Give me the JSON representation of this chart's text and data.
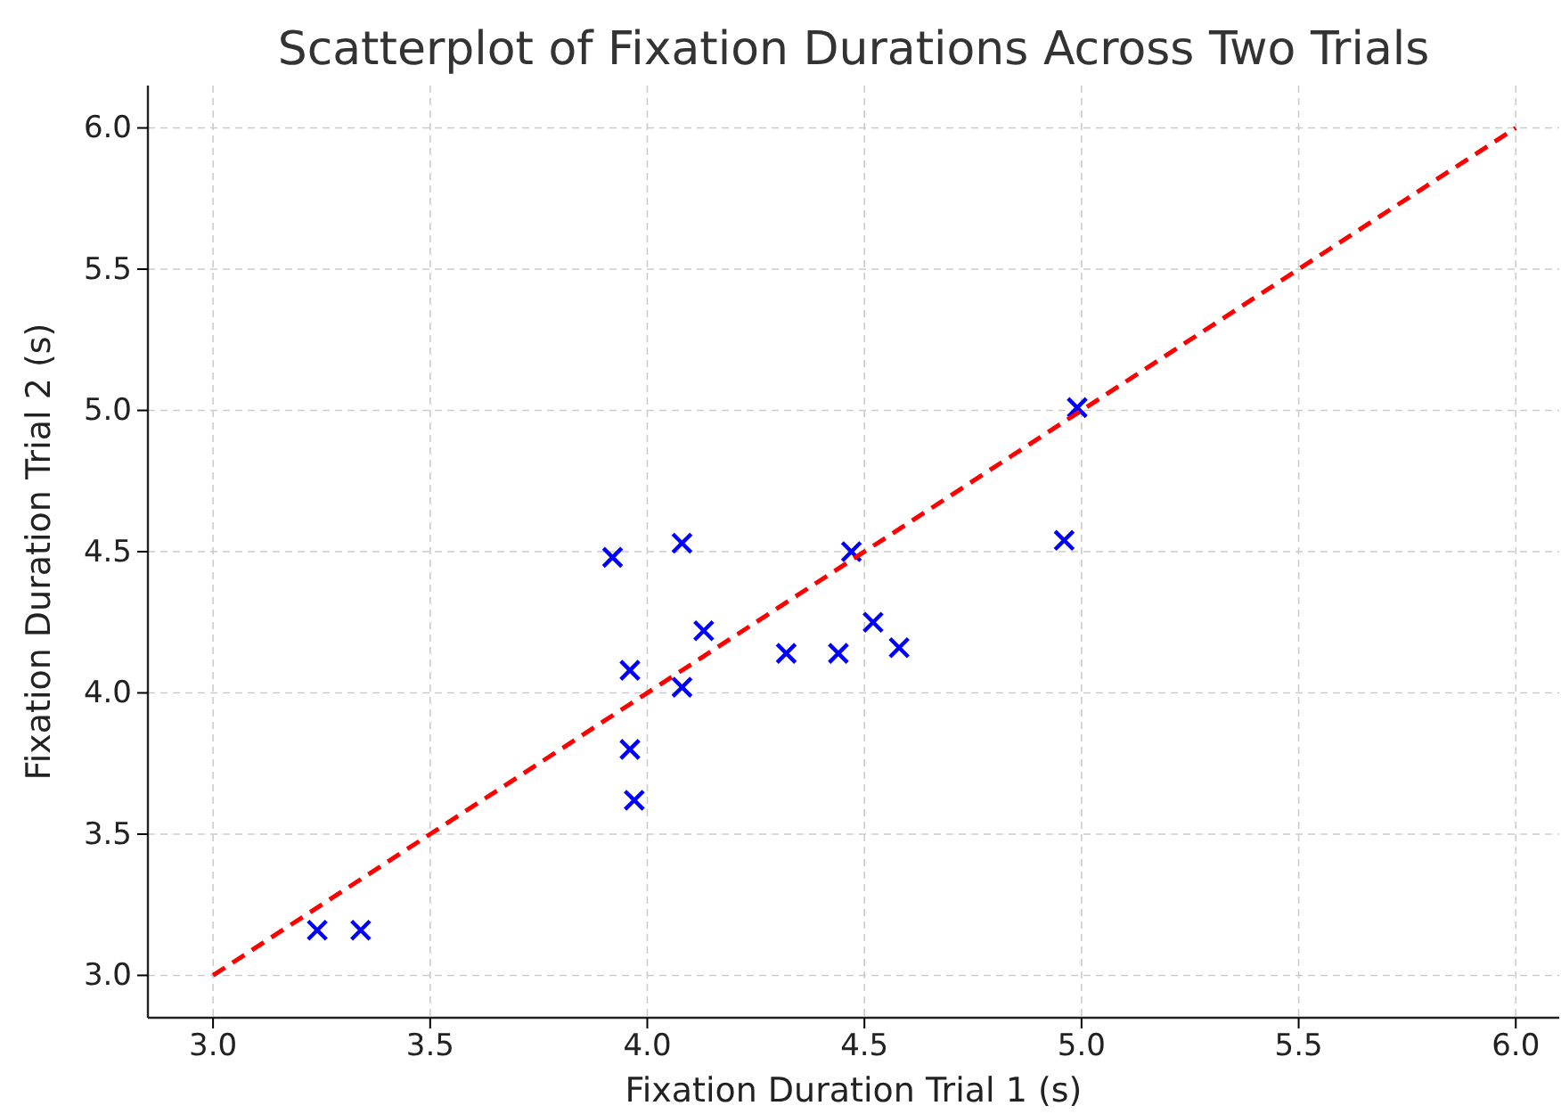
{
  "chart_data": {
    "type": "scatter",
    "title": "Scatterplot of Fixation Durations Across Two Trials",
    "xlabel": "Fixation Duration Trial 1 (s)",
    "ylabel": "Fixation Duration Trial 2 (s)",
    "xlim": [
      2.85,
      6.1
    ],
    "ylim": [
      2.85,
      6.15
    ],
    "xticks": [
      {
        "value": 3,
        "label": "3.0"
      },
      {
        "value": 3.5,
        "label": "3.5"
      },
      {
        "value": 4,
        "label": "4.0"
      },
      {
        "value": 4.5,
        "label": "4.5"
      },
      {
        "value": 5,
        "label": "5.0"
      },
      {
        "value": 5.5,
        "label": "5.5"
      },
      {
        "value": 6,
        "label": "6.0"
      }
    ],
    "yticks": [
      {
        "value": 3,
        "label": "3.0"
      },
      {
        "value": 3.5,
        "label": "3.5"
      },
      {
        "value": 4,
        "label": "4.0"
      },
      {
        "value": 4.5,
        "label": "4.5"
      },
      {
        "value": 5,
        "label": "5.0"
      },
      {
        "value": 5.5,
        "label": "5.5"
      },
      {
        "value": 6,
        "label": "6.0"
      }
    ],
    "grid": true,
    "series": [
      {
        "marker": "cross",
        "color": "#0000ff",
        "x": [
          3.24,
          3.34,
          3.92,
          4.08,
          3.96,
          3.96,
          3.97,
          4.08,
          4.13,
          4.32,
          4.44,
          4.47,
          4.52,
          4.58,
          4.96,
          4.99
        ],
        "values": [
          3.16,
          3.16,
          4.48,
          4.53,
          4.08,
          3.8,
          3.62,
          4.02,
          4.22,
          4.14,
          4.14,
          4.5,
          4.25,
          4.16,
          4.54,
          5.01
        ]
      },
      {
        "type": "line",
        "color": "#ff0000",
        "line_style": "dashed",
        "x": [
          3,
          6
        ],
        "values": [
          3,
          6
        ]
      }
    ]
  }
}
